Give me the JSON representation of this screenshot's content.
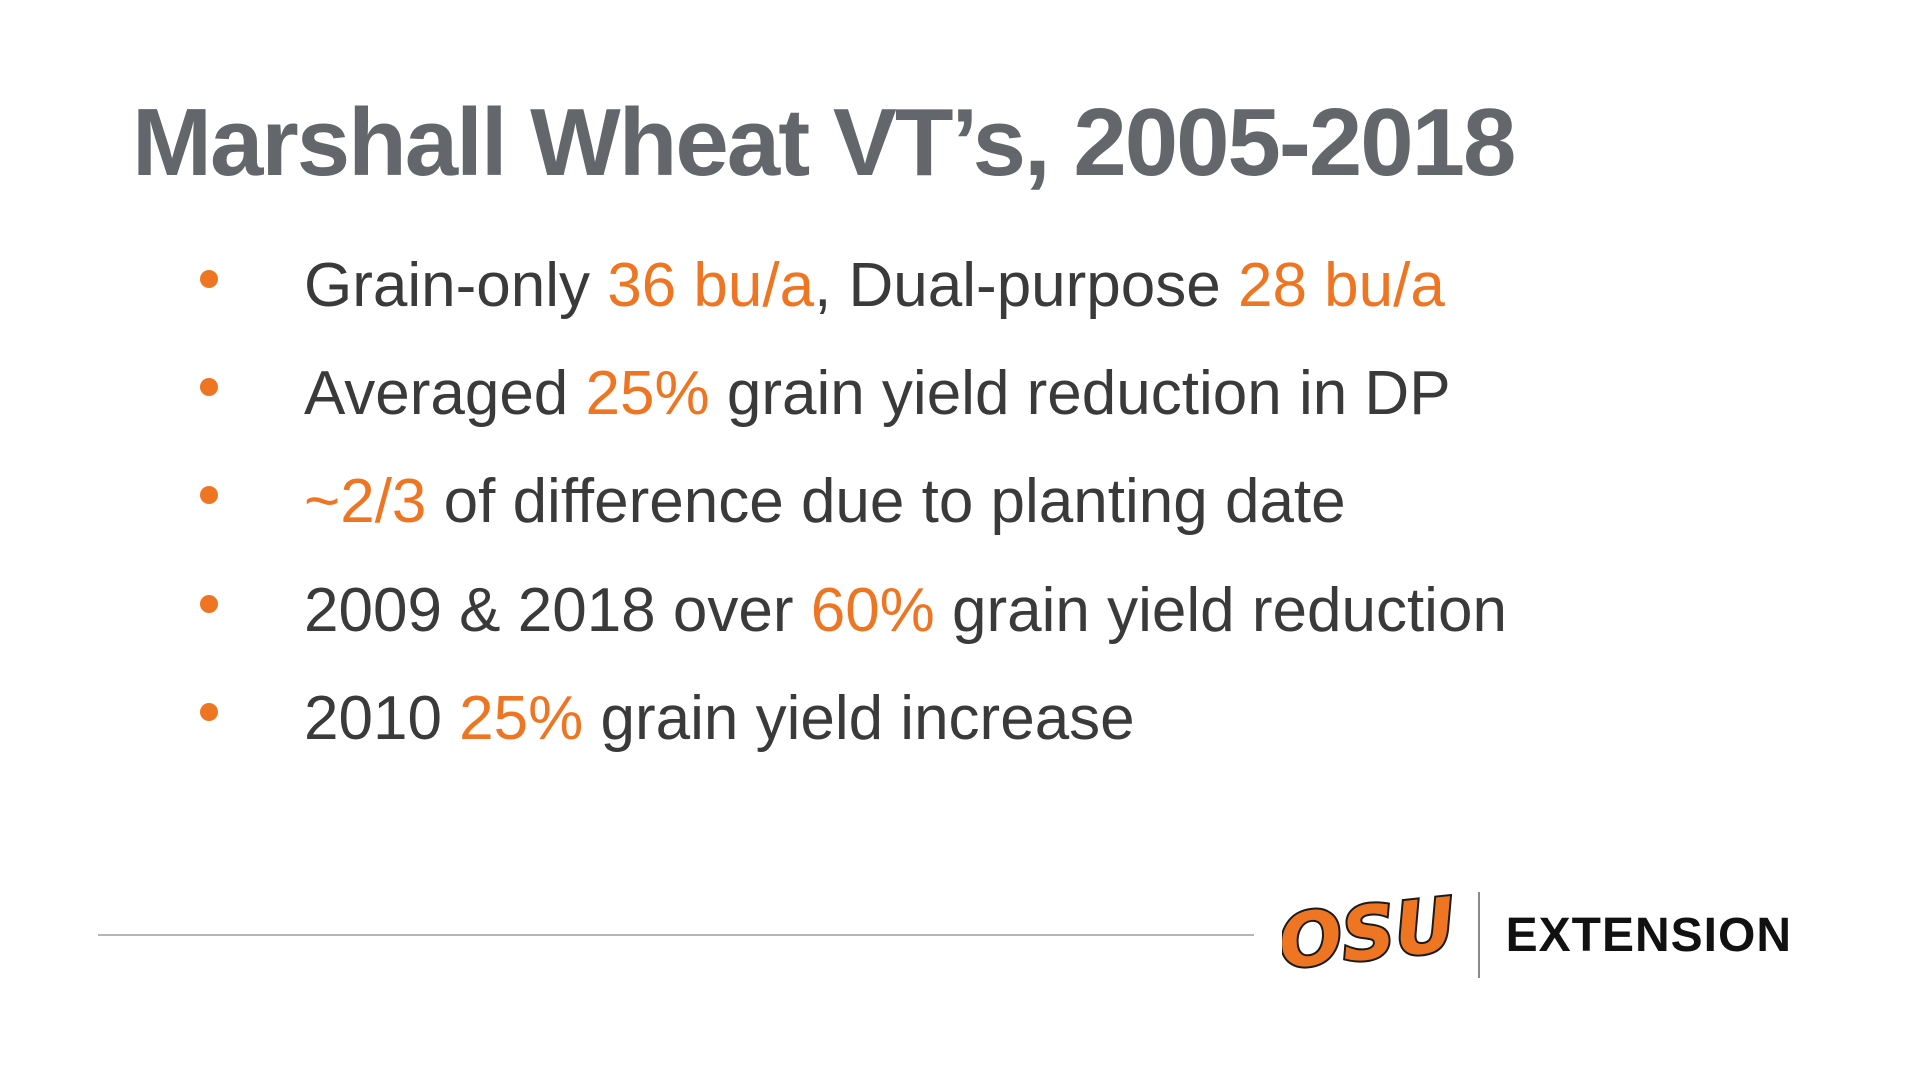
{
  "slide": {
    "title": "Marshall Wheat VT’s, 2005-2018",
    "colors": {
      "accent": "#EE7623",
      "title": "#63666A",
      "body": "#3A3A3A",
      "line": "#B5B5B5"
    },
    "bullets": [
      {
        "segments": [
          {
            "text": "Grain-only ",
            "accent": false
          },
          {
            "text": "36 bu/a",
            "accent": true
          },
          {
            "text": ", Dual-purpose ",
            "accent": false
          },
          {
            "text": "28 bu/a",
            "accent": true
          }
        ]
      },
      {
        "segments": [
          {
            "text": "Averaged ",
            "accent": false
          },
          {
            "text": "25%",
            "accent": true
          },
          {
            "text": " grain yield reduction in DP",
            "accent": false
          }
        ]
      },
      {
        "segments": [
          {
            "text": "~2/3",
            "accent": true
          },
          {
            "text": " of difference due to planting date",
            "accent": false
          }
        ]
      },
      {
        "segments": [
          {
            "text": "2009 & 2018 over ",
            "accent": false
          },
          {
            "text": "60%",
            "accent": true
          },
          {
            "text": " grain yield reduction",
            "accent": false
          }
        ]
      },
      {
        "segments": [
          {
            "text": "2010 ",
            "accent": false
          },
          {
            "text": "25%",
            "accent": true
          },
          {
            "text": " grain yield increase",
            "accent": false
          }
        ]
      }
    ],
    "footer": {
      "logo_text": "OSU",
      "brand_label": "EXTENSION"
    }
  }
}
